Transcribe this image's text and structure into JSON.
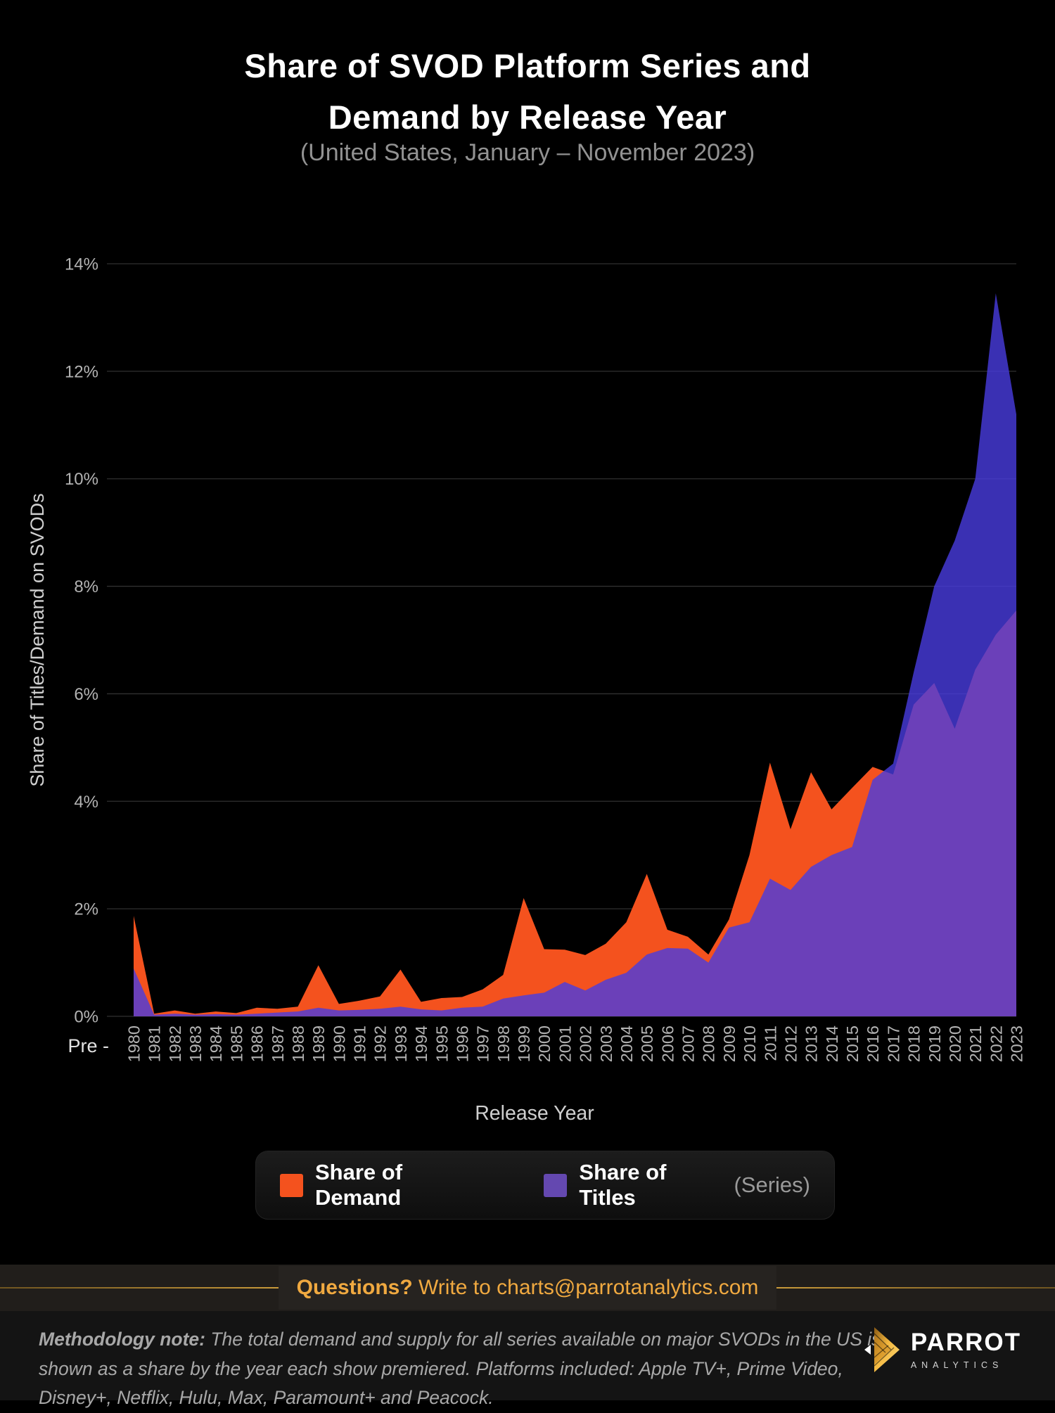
{
  "title": {
    "line1": "Share of SVOD Platform Series and",
    "line2": "Demand by Release Year"
  },
  "subtitle": "(United States, January – November 2023)",
  "chart_data": {
    "type": "area",
    "categories": [
      "Pre-1980",
      "1981",
      "1982",
      "1983",
      "1984",
      "1985",
      "1986",
      "1987",
      "1988",
      "1989",
      "1990",
      "1991",
      "1992",
      "1993",
      "1994",
      "1995",
      "1996",
      "1997",
      "1998",
      "1999",
      "2000",
      "2001",
      "2002",
      "2003",
      "2004",
      "2005",
      "2006",
      "2007",
      "2008",
      "2009",
      "2010",
      "2011",
      "2012",
      "2013",
      "2014",
      "2015",
      "2016",
      "2017",
      "2018",
      "2019",
      "2020",
      "2021",
      "2022",
      "2023"
    ],
    "series": [
      {
        "name": "Share of Demand",
        "color": "#F4521E",
        "opacity": 1,
        "values": [
          1.87,
          0.05,
          0.11,
          0.05,
          0.09,
          0.06,
          0.16,
          0.14,
          0.18,
          0.95,
          0.23,
          0.29,
          0.37,
          0.87,
          0.27,
          0.34,
          0.36,
          0.5,
          0.77,
          2.2,
          1.25,
          1.24,
          1.14,
          1.35,
          1.75,
          2.65,
          1.61,
          1.48,
          1.15,
          1.8,
          3.0,
          4.72,
          3.48,
          4.54,
          3.85,
          4.25,
          4.64,
          4.5,
          5.8,
          6.2,
          5.35,
          6.45,
          7.1,
          7.55
        ]
      },
      {
        "name": "Share of Titles",
        "suffix": " (Series)",
        "color": "#483CE0",
        "opacity": 0.8,
        "legend_color": "#6448B0",
        "values": [
          0.89,
          0.03,
          0.05,
          0.03,
          0.04,
          0.03,
          0.05,
          0.07,
          0.09,
          0.16,
          0.11,
          0.12,
          0.14,
          0.18,
          0.13,
          0.11,
          0.16,
          0.18,
          0.33,
          0.39,
          0.44,
          0.64,
          0.48,
          0.68,
          0.81,
          1.15,
          1.27,
          1.26,
          1.0,
          1.65,
          1.75,
          2.56,
          2.35,
          2.78,
          3.0,
          3.15,
          4.4,
          4.7,
          6.4,
          8.0,
          8.85,
          10.0,
          13.45,
          11.2
        ]
      }
    ],
    "title": "Share of SVOD Platform Series and Demand by Release Year",
    "xlabel": "Release Year",
    "ylabel": "Share of Titles/Demand on SVODs",
    "ylim": [
      0,
      14
    ],
    "y_ticks": [
      "0%",
      "2%",
      "4%",
      "6%",
      "8%",
      "10%",
      "12%",
      "14%"
    ],
    "x_pre_label": "Pre -",
    "grid": true,
    "legend_position": "bottom",
    "background": "#000000",
    "gridline_color": "#313131",
    "tick_color": "#b3b3b3"
  },
  "legend": {
    "demand_label": "Share of Demand",
    "titles_label": "Share of Titles",
    "titles_suffix": "(Series)",
    "demand_color": "#F4521E",
    "titles_color": "#6448B0"
  },
  "questions_band": {
    "bold": "Questions?",
    "text": " Write to charts@parrotanalytics.com",
    "accent_color": "#f0a940"
  },
  "methodology": {
    "bold": "Methodology note:",
    "text": " The total demand and supply for all series available on major SVODs in the US is shown as a share by the year each show premiered. Platforms included: Apple TV+, Prime Video, Disney+, Netflix, Hulu, Max, Paramount+ and Peacock."
  },
  "logo": {
    "brand": "PARROT",
    "sub": "ANALYTICS"
  }
}
